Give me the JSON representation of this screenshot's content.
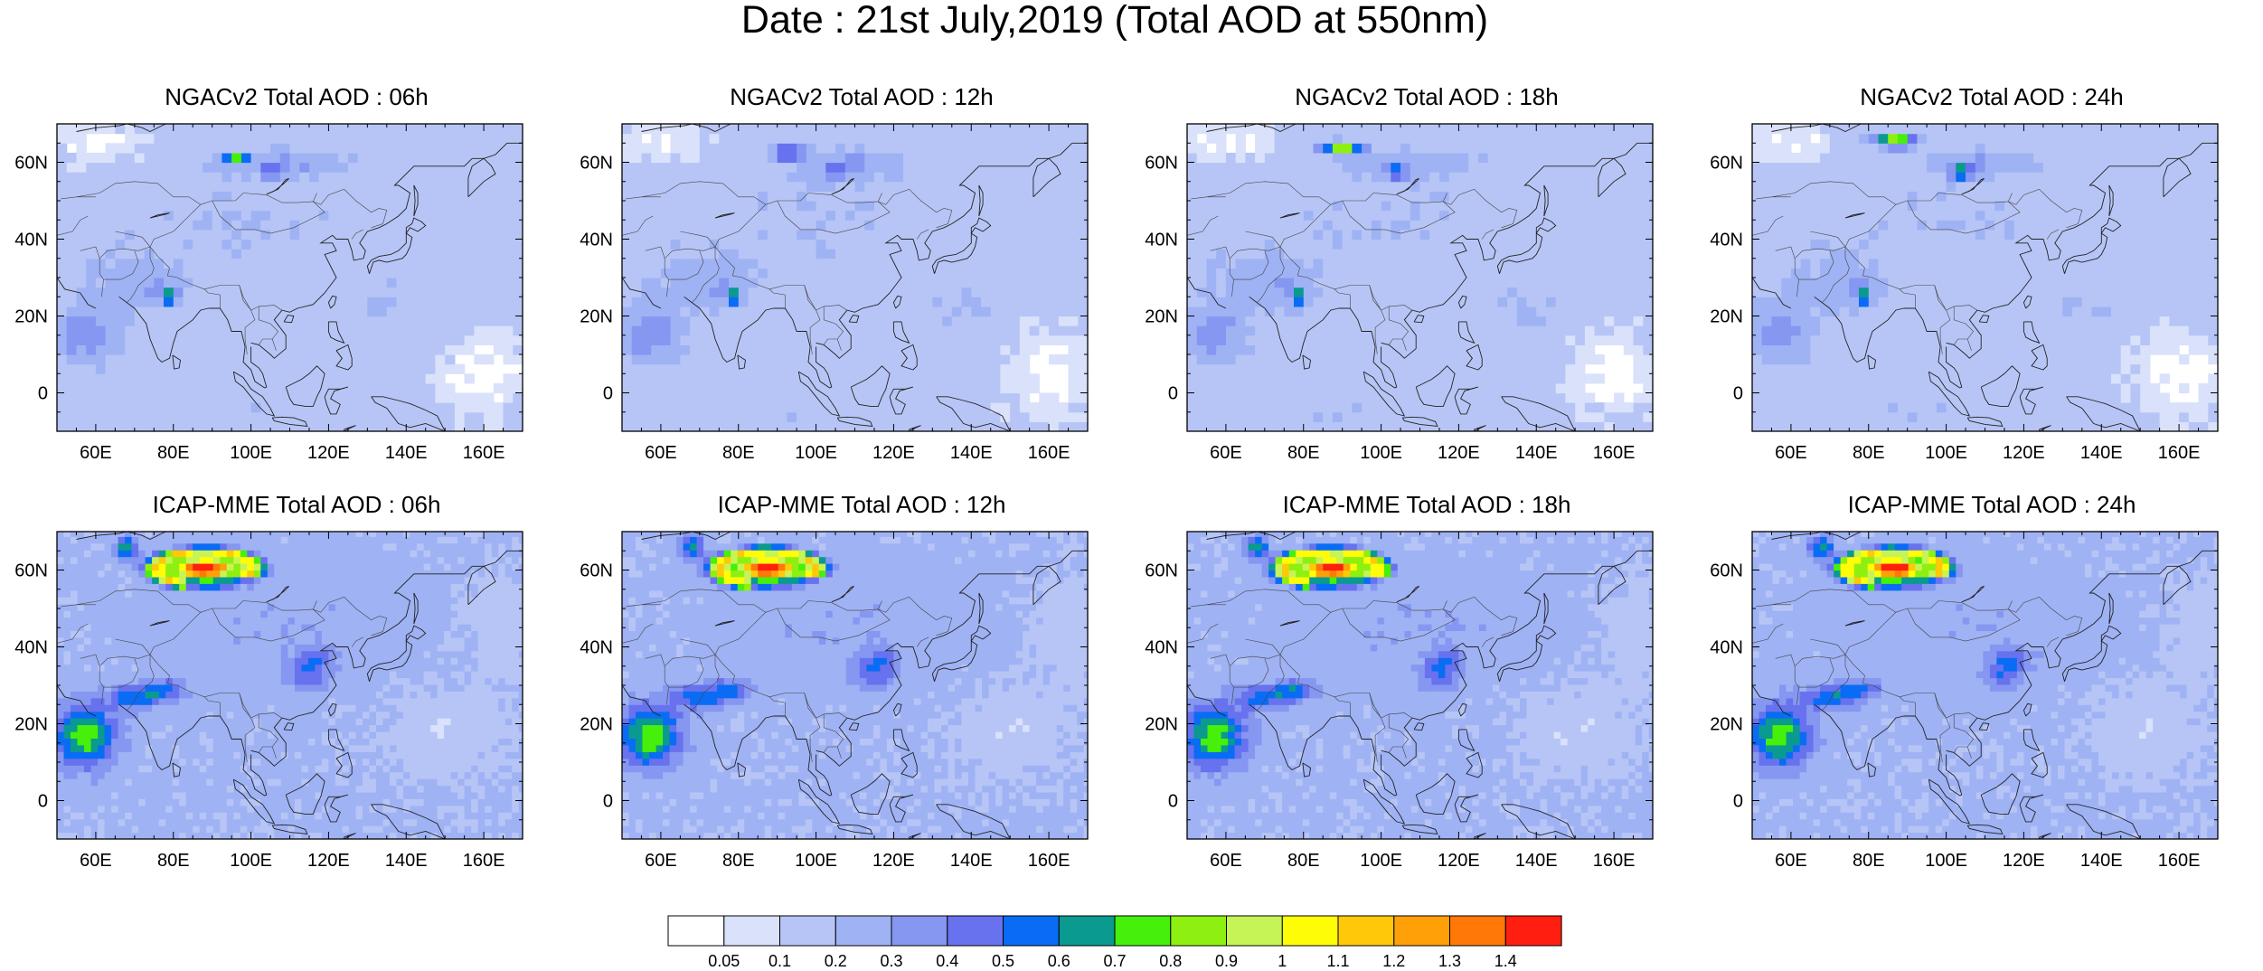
{
  "title": "Date : 21st July,2019 (Total AOD at 550nm)",
  "rows": [
    {
      "model": "NGACv2",
      "panels": [
        {
          "title": "NGACv2 Total AOD : 06h"
        },
        {
          "title": "NGACv2 Total AOD : 12h"
        },
        {
          "title": "NGACv2 Total AOD : 18h"
        },
        {
          "title": "NGACv2 Total AOD : 24h"
        }
      ]
    },
    {
      "model": "ICAP-MME",
      "panels": [
        {
          "title": "ICAP-MME Total AOD : 06h"
        },
        {
          "title": "ICAP-MME Total AOD : 12h"
        },
        {
          "title": "ICAP-MME Total AOD : 18h"
        },
        {
          "title": "ICAP-MME Total AOD : 24h"
        }
      ]
    }
  ],
  "lat_ticks": [
    {
      "value": 60,
      "label": "60N"
    },
    {
      "value": 40,
      "label": "40N"
    },
    {
      "value": 20,
      "label": "20N"
    },
    {
      "value": 0,
      "label": "0"
    }
  ],
  "lon_ticks": [
    {
      "value": 60,
      "label": "60E"
    },
    {
      "value": 80,
      "label": "80E"
    },
    {
      "value": 100,
      "label": "100E"
    },
    {
      "value": 120,
      "label": "120E"
    },
    {
      "value": 140,
      "label": "140E"
    },
    {
      "value": 160,
      "label": "160E"
    }
  ],
  "colorbar": {
    "levels": [
      "0.05",
      "0.1",
      "0.2",
      "0.3",
      "0.4",
      "0.5",
      "0.6",
      "0.7",
      "0.8",
      "0.9",
      "1",
      "1.1",
      "1.2",
      "1.3",
      "1.4"
    ],
    "colors": [
      "#ffffff",
      "#d9e1fb",
      "#b7c5f6",
      "#9fb2f4",
      "#8597f0",
      "#6872ee",
      "#0a6cf4",
      "#0a9a90",
      "#46f00a",
      "#8ef010",
      "#c6f456",
      "#fffc08",
      "#ffc808",
      "#ffa008",
      "#ff7808",
      "#ff1e10"
    ]
  }
}
